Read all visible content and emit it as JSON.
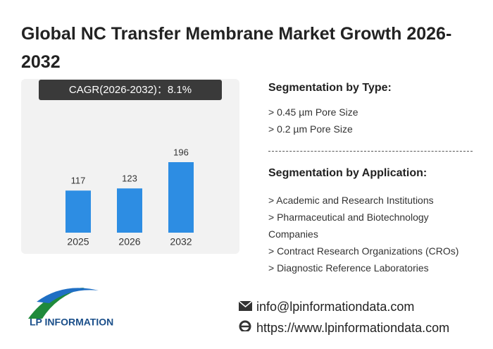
{
  "chart_data": {
    "type": "bar",
    "title": "Global NC Transfer Membrane Market Growth 2026-2032",
    "cagr": "CAGR(2026-2032)：8.1%",
    "categories": [
      "2025",
      "2026",
      "2032"
    ],
    "values": [
      117,
      123,
      196
    ],
    "color": "#2d8de3"
  },
  "segmentation_by_type": {
    "heading": "Segmentation by Type:",
    "items": [
      "> 0.45 µm Pore Size",
      "> 0.2 µm Pore Size"
    ]
  },
  "segmentation_by_application": {
    "heading": "Segmentation by Application:",
    "items": [
      "> Academic and Research Institutions",
      "> Pharmaceutical and Biotechnology Companies",
      "> Contract Research Organizations (CROs)",
      "> Diagnostic Reference Laboratories"
    ]
  },
  "footer": {
    "brand": "LP INFORMATION",
    "email": "info@lpinformationdata.com",
    "website": "https://www.lpinformationdata.com"
  }
}
